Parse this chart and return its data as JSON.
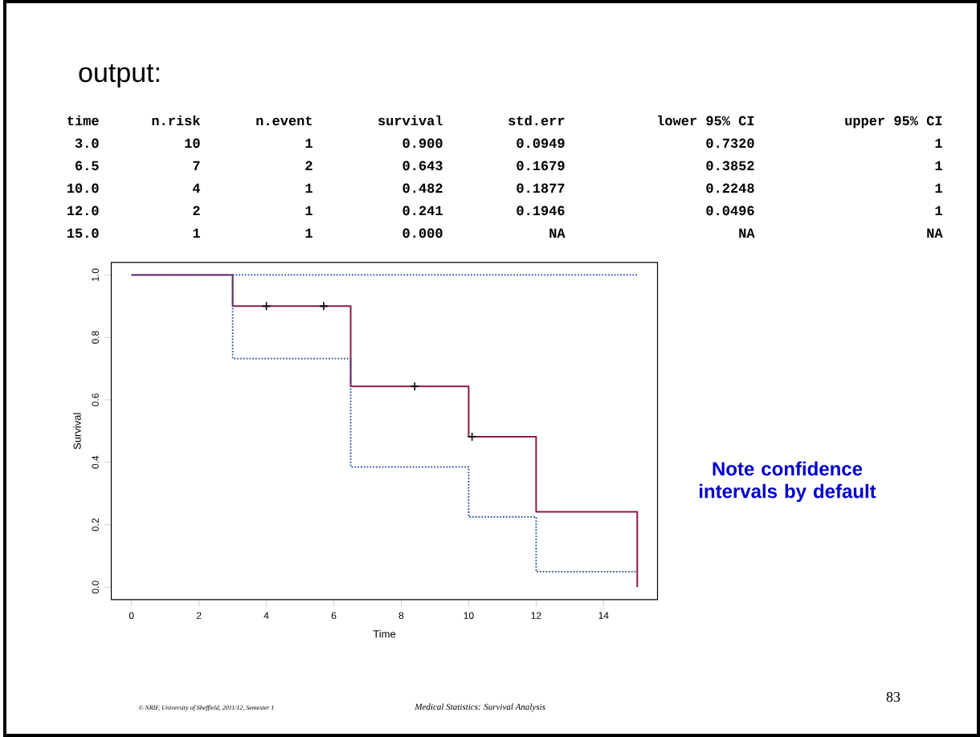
{
  "chart_data": {
    "type": "step",
    "title": "output:",
    "xlabel": "Time",
    "ylabel": "Survival",
    "xlim": [
      -0.6,
      15.6
    ],
    "ylim": [
      -0.04,
      1.04
    ],
    "xticks": [
      0,
      2,
      4,
      6,
      8,
      10,
      12,
      14
    ],
    "yticks": [
      {
        "value": 0,
        "label": "0.0"
      },
      {
        "value": 0.2,
        "label": "0.2"
      },
      {
        "value": 0.4,
        "label": "0.4"
      },
      {
        "value": 0.6,
        "label": "0.6"
      },
      {
        "value": 0.8,
        "label": "0.8"
      },
      {
        "value": 1,
        "label": "1.0"
      }
    ],
    "grid": false,
    "series": [
      {
        "color": "#8b1a4a",
        "line_style": "solid",
        "marker": "none",
        "x": [
          0,
          3,
          6.5,
          10,
          12,
          15
        ],
        "values": [
          1,
          0.9,
          0.643,
          0.482,
          0.241,
          0
        ]
      },
      {
        "color": "#1f4e9a",
        "line_style": "dotted",
        "marker": "none",
        "x": [
          0,
          3,
          6.5,
          10,
          12,
          15
        ],
        "values": [
          1,
          0.732,
          0.3852,
          0.2248,
          0.0496,
          0.0496
        ]
      },
      {
        "color": "#1f4e9a",
        "line_style": "dotted",
        "marker": "none",
        "x": [
          3,
          15
        ],
        "values": [
          1,
          1
        ]
      },
      {
        "type": "scatter",
        "color": "#000000",
        "marker": "cross",
        "x": [
          4,
          5.7,
          8.4,
          10.1
        ],
        "values": [
          0.9,
          0.9,
          0.643,
          0.482
        ]
      }
    ],
    "annotations": [
      "time",
      "n.risk",
      "n.event",
      "survival",
      "std.err",
      "lower 95% CI",
      "upper 95% CI",
      "3.0",
      "10",
      "1",
      "0.900",
      "0.0949",
      "0.7320",
      "1",
      "6.5",
      "7",
      "2",
      "0.643",
      "0.1679",
      "0.3852",
      "1",
      "10.0",
      "4",
      "1",
      "0.482",
      "0.1877",
      "0.2248",
      "1",
      "12.0",
      "2",
      "1",
      "0.241",
      "0.1946",
      "0.0496",
      "1",
      "15.0",
      "1",
      "1",
      "0.000",
      "NA",
      "NA",
      "NA",
      "Note confidence intervals by default",
      "© NRIF, University of Sheffield, 2011/12, Semester 1",
      "Medical Statistics: Survival Analysis",
      "83"
    ]
  }
}
